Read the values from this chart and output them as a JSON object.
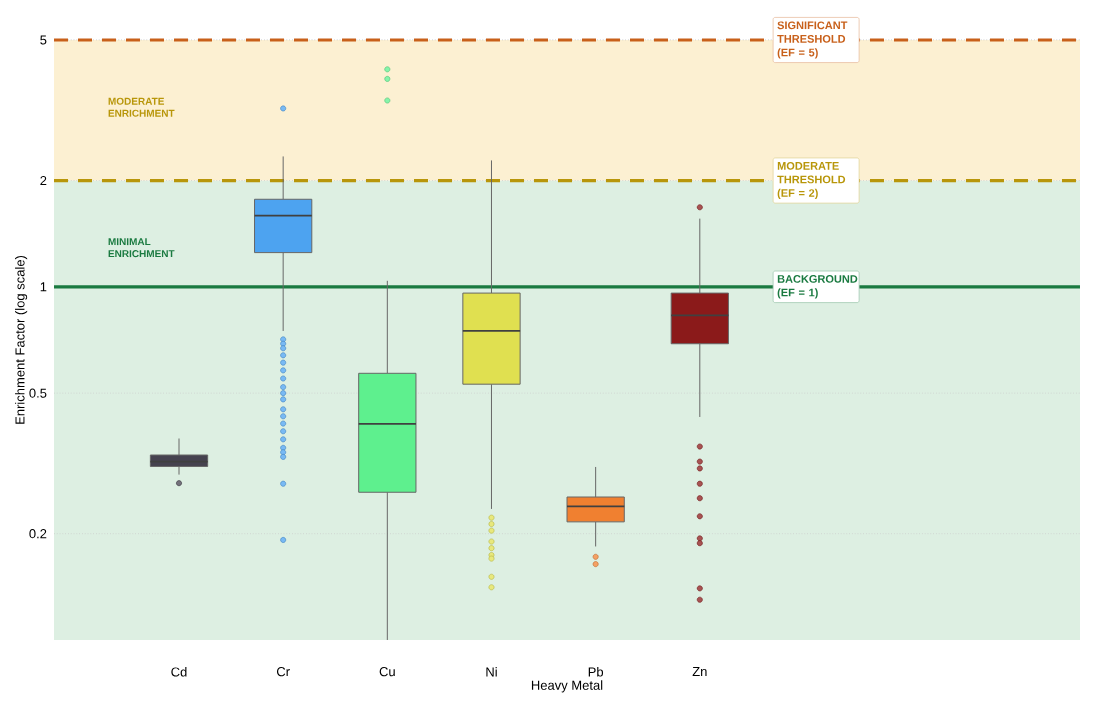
{
  "chart_data": {
    "type": "box",
    "xlabel": "Heavy Metal",
    "ylabel": "Enrichment Factor (log scale)",
    "categories": [
      "Cd",
      "Cr",
      "Cu",
      "Ni",
      "Pb",
      "Zn"
    ],
    "colors": [
      "#45424f",
      "#4da3f0",
      "#5ef08e",
      "#e0e050",
      "#f08030",
      "#8b1a1a"
    ],
    "log": true,
    "ylim": [
      0.1,
      5
    ],
    "yticks": [
      0.2,
      0.5,
      1,
      2,
      5
    ],
    "grid": "y",
    "boxes": [
      {
        "low": 0.294,
        "q1": 0.31,
        "median": 0.32,
        "q3": 0.334,
        "high": 0.372,
        "outliers": [
          0.278
        ]
      },
      {
        "low": 0.75,
        "q1": 1.25,
        "median": 1.59,
        "q3": 1.77,
        "high": 2.34,
        "outliers": [
          3.2,
          0.71,
          0.69,
          0.67,
          0.64,
          0.61,
          0.58,
          0.55,
          0.52,
          0.5,
          0.48,
          0.45,
          0.43,
          0.41,
          0.39,
          0.37,
          0.35,
          0.34,
          0.33,
          0.277,
          0.192
        ]
      },
      {
        "low": 0.1,
        "q1": 0.262,
        "median": 0.409,
        "q3": 0.569,
        "high": 1.04,
        "outliers": [
          4.13,
          3.88,
          3.37
        ]
      },
      {
        "low": 0.235,
        "q1": 0.53,
        "median": 0.75,
        "q3": 0.96,
        "high": 2.28,
        "outliers": [
          0.222,
          0.213,
          0.204,
          0.19,
          0.182,
          0.174,
          0.17,
          0.151,
          0.141
        ]
      },
      {
        "low": 0.184,
        "q1": 0.216,
        "median": 0.239,
        "q3": 0.254,
        "high": 0.309,
        "outliers": [
          0.172,
          0.164
        ]
      },
      {
        "low": 0.428,
        "q1": 0.69,
        "median": 0.83,
        "q3": 0.96,
        "high": 1.56,
        "outliers": [
          1.68,
          0.353,
          0.32,
          0.306,
          0.277,
          0.252,
          0.224,
          0.194,
          0.188,
          0.14,
          0.13
        ]
      }
    ],
    "bands": [
      {
        "axis": "y",
        "from": 0.1,
        "to": 2,
        "label": "MINIMAL ENRICHMENT",
        "color": "#ddefe2"
      },
      {
        "axis": "y",
        "from": 2,
        "to": 5,
        "label": "MODERATE ENRICHMENT",
        "color": "#fcf0d2"
      }
    ],
    "ref_lines": [
      {
        "axis": "y",
        "value": 1,
        "label": "BACKGROUND (EF = 1)",
        "color": "#1a7a40",
        "line_style": "solid"
      },
      {
        "axis": "y",
        "value": 2,
        "label": "MODERATE THRESHOLD (EF = 2)",
        "color": "#b8960a",
        "line_style": "dashed"
      },
      {
        "axis": "y",
        "value": 5,
        "label": "SIGNIFICANT THRESHOLD (EF = 5)",
        "color": "#c8601a",
        "line_style": "dashed"
      }
    ]
  }
}
